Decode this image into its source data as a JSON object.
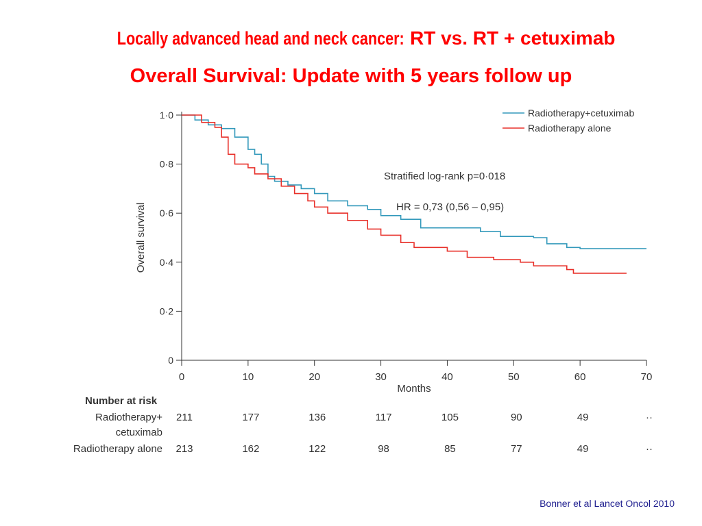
{
  "title_line1_part1": "Locally advanced head and neck cancer:",
  "title_line1_part2": " RT vs. RT + cetuximab",
  "title_line2": "Overall Survival: Update with 5 years follow up",
  "citation": "Bonner et al Lancet Oncol 2010",
  "colors": {
    "title": "#ff0000",
    "rt_cetux": "#3399bb",
    "rt_alone": "#e8302a"
  },
  "chart_data": {
    "type": "line",
    "xlabel": "Months",
    "ylabel": "Overall survival",
    "xlim": [
      0,
      70
    ],
    "ylim": [
      0,
      1
    ],
    "xticks": [
      "0",
      "10",
      "20",
      "30",
      "40",
      "50",
      "60",
      "70"
    ],
    "yticks": [
      "0",
      "0·2",
      "0·4",
      "0·6",
      "0·8",
      "1·0"
    ],
    "legend": [
      "Radiotherapy+cetuximab",
      "Radiotherapy alone"
    ],
    "legend_position": "top-right",
    "annotations": [
      "Stratified log-rank p=0·018",
      "HR = 0,73 (0,56 – 0,95)"
    ],
    "series": [
      {
        "name": "Radiotherapy+cetuximab",
        "x": [
          0,
          2,
          4,
          6,
          8,
          10,
          11,
          12,
          13,
          14,
          16,
          18,
          20,
          22,
          25,
          28,
          30,
          33,
          36,
          40,
          45,
          48,
          53,
          55,
          58,
          60,
          70
        ],
        "y": [
          1.0,
          0.98,
          0.96,
          0.945,
          0.91,
          0.86,
          0.84,
          0.8,
          0.75,
          0.73,
          0.715,
          0.7,
          0.68,
          0.65,
          0.63,
          0.615,
          0.59,
          0.575,
          0.54,
          0.54,
          0.525,
          0.505,
          0.5,
          0.475,
          0.46,
          0.455,
          0.455
        ]
      },
      {
        "name": "Radiotherapy alone",
        "x": [
          0,
          3,
          5,
          6,
          7,
          8,
          10,
          11,
          13,
          15,
          17,
          19,
          20,
          22,
          25,
          28,
          30,
          33,
          35,
          40,
          43,
          47,
          51,
          53,
          58,
          59,
          67
        ],
        "y": [
          1.0,
          0.97,
          0.95,
          0.91,
          0.84,
          0.8,
          0.785,
          0.76,
          0.74,
          0.71,
          0.68,
          0.65,
          0.625,
          0.6,
          0.57,
          0.535,
          0.51,
          0.48,
          0.46,
          0.445,
          0.42,
          0.41,
          0.4,
          0.385,
          0.37,
          0.355,
          0.355
        ]
      }
    ],
    "risk_table": {
      "title": "Number at risk",
      "rows": [
        {
          "label1": "Radiotherapy+",
          "label2": "cetuximab",
          "values": [
            "211",
            "177",
            "136",
            "117",
            "105",
            "90",
            "49",
            "··"
          ]
        },
        {
          "label1": "Radiotherapy alone",
          "label2": "",
          "values": [
            "213",
            "162",
            "122",
            "98",
            "85",
            "77",
            "49",
            "··"
          ]
        }
      ]
    }
  }
}
